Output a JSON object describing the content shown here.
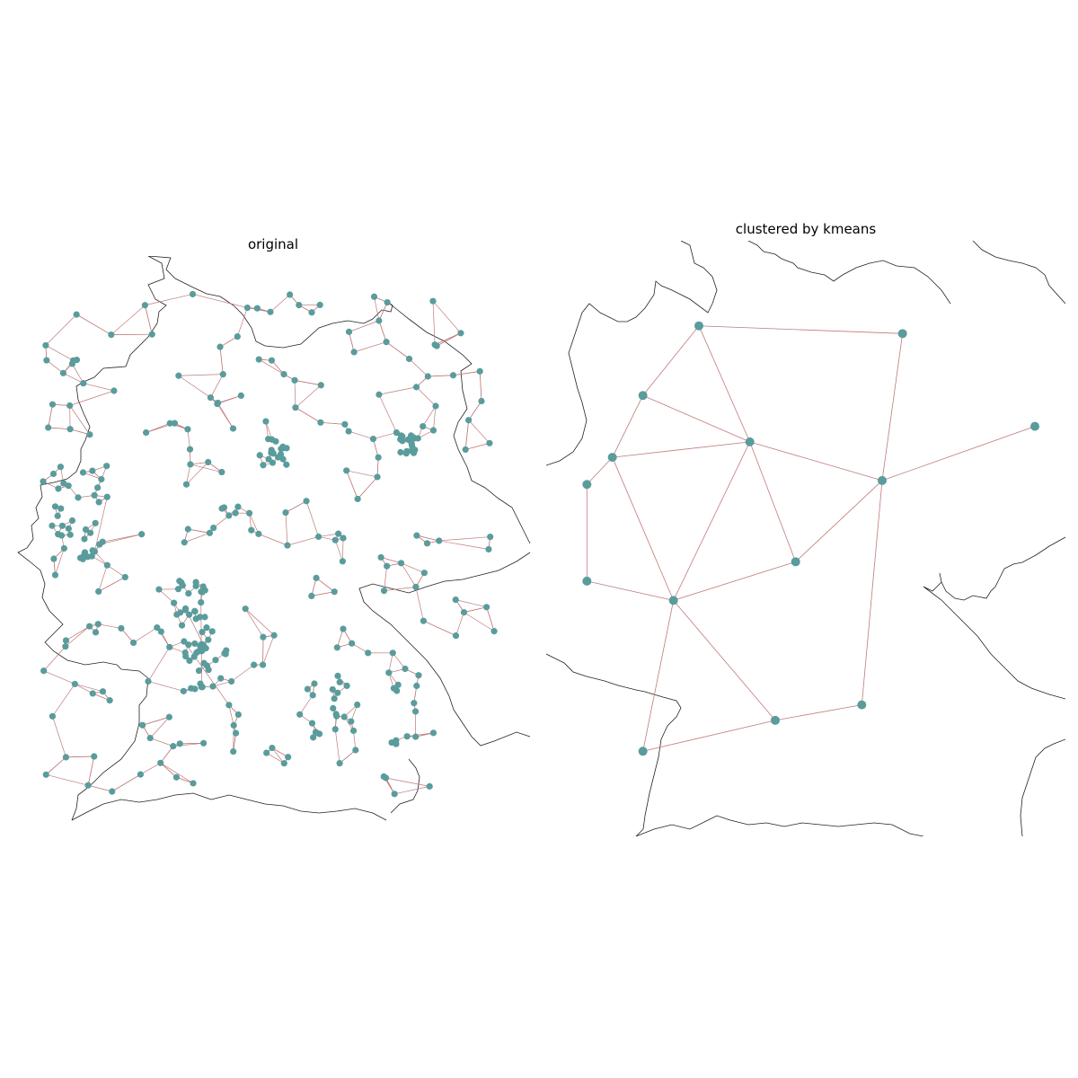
{
  "panels": [
    {
      "title": "original"
    },
    {
      "title": "clustered by kmeans"
    }
  ],
  "colors": {
    "bus": "#5a9c9c",
    "line": "#c07a7a",
    "coast": "#222222"
  },
  "clustered_buses": [
    {
      "id": 0,
      "lon": 8.0,
      "lat": 53.9
    },
    {
      "id": 1,
      "lon": 12.0,
      "lat": 53.8
    },
    {
      "id": 2,
      "lon": 6.9,
      "lat": 53.0
    },
    {
      "id": 3,
      "lon": 14.6,
      "lat": 52.6
    },
    {
      "id": 4,
      "lon": 9.0,
      "lat": 52.4
    },
    {
      "id": 5,
      "lon": 6.3,
      "lat": 52.2
    },
    {
      "id": 6,
      "lon": 5.8,
      "lat": 51.85
    },
    {
      "id": 7,
      "lon": 11.6,
      "lat": 51.9
    },
    {
      "id": 8,
      "lon": 5.8,
      "lat": 50.6
    },
    {
      "id": 9,
      "lon": 9.9,
      "lat": 50.85
    },
    {
      "id": 10,
      "lon": 7.5,
      "lat": 50.35
    },
    {
      "id": 11,
      "lon": 11.2,
      "lat": 49.0
    },
    {
      "id": 12,
      "lon": 9.5,
      "lat": 48.8
    },
    {
      "id": 13,
      "lon": 6.9,
      "lat": 48.4
    }
  ],
  "clustered_lines": [
    [
      0,
      1
    ],
    [
      0,
      2
    ],
    [
      0,
      4
    ],
    [
      1,
      7
    ],
    [
      2,
      4
    ],
    [
      2,
      5
    ],
    [
      4,
      5
    ],
    [
      4,
      7
    ],
    [
      3,
      7
    ],
    [
      5,
      6
    ],
    [
      6,
      8
    ],
    [
      5,
      10
    ],
    [
      4,
      10
    ],
    [
      4,
      9
    ],
    [
      7,
      9
    ],
    [
      7,
      11
    ],
    [
      8,
      10
    ],
    [
      9,
      10
    ],
    [
      10,
      12
    ],
    [
      10,
      13
    ],
    [
      12,
      13
    ],
    [
      11,
      12
    ]
  ]
}
